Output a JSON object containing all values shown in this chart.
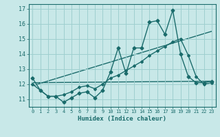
{
  "xlabel": "Humidex (Indice chaleur)",
  "xlim": [
    -0.5,
    23.5
  ],
  "ylim": [
    10.5,
    17.3
  ],
  "xticks": [
    0,
    1,
    2,
    3,
    4,
    5,
    6,
    7,
    8,
    9,
    10,
    11,
    12,
    13,
    14,
    15,
    16,
    17,
    18,
    19,
    20,
    21,
    22,
    23
  ],
  "yticks": [
    11,
    12,
    13,
    14,
    15,
    16,
    17
  ],
  "background_color": "#c8e8e8",
  "grid_color": "#9ecfcf",
  "line_color": "#1a6b6b",
  "series": [
    {
      "x": [
        0,
        1,
        2,
        3,
        4,
        5,
        6,
        7,
        8,
        9,
        10,
        11,
        12,
        13,
        14,
        15,
        16,
        17,
        18,
        19,
        20,
        21,
        22,
        23
      ],
      "y": [
        12.4,
        11.6,
        11.2,
        11.2,
        10.8,
        11.1,
        11.4,
        11.5,
        11.1,
        11.6,
        12.8,
        14.4,
        12.7,
        14.4,
        14.4,
        16.1,
        16.2,
        15.3,
        16.9,
        14.0,
        12.5,
        12.1,
        12.1,
        12.2
      ],
      "marker": "D",
      "markersize": 2.5,
      "linewidth": 1.0
    },
    {
      "x": [
        0,
        1,
        2,
        3,
        4,
        5,
        6,
        7,
        8,
        9,
        10,
        11,
        12,
        13,
        14,
        15,
        16,
        17,
        18,
        19,
        20,
        21,
        22,
        23
      ],
      "y": [
        12.0,
        11.6,
        11.2,
        11.2,
        11.3,
        11.5,
        11.8,
        11.9,
        11.7,
        12.0,
        12.4,
        12.6,
        12.9,
        13.2,
        13.5,
        13.9,
        14.2,
        14.5,
        14.8,
        15.0,
        13.9,
        12.5,
        12.0,
        12.1
      ],
      "marker": "D",
      "markersize": 2.0,
      "linewidth": 1.0
    },
    {
      "x": [
        0,
        23
      ],
      "y": [
        11.9,
        15.5
      ],
      "marker": null,
      "markersize": 0,
      "linewidth": 1.0
    },
    {
      "x": [
        0,
        23
      ],
      "y": [
        12.1,
        12.2
      ],
      "marker": null,
      "markersize": 0,
      "linewidth": 1.0
    }
  ]
}
